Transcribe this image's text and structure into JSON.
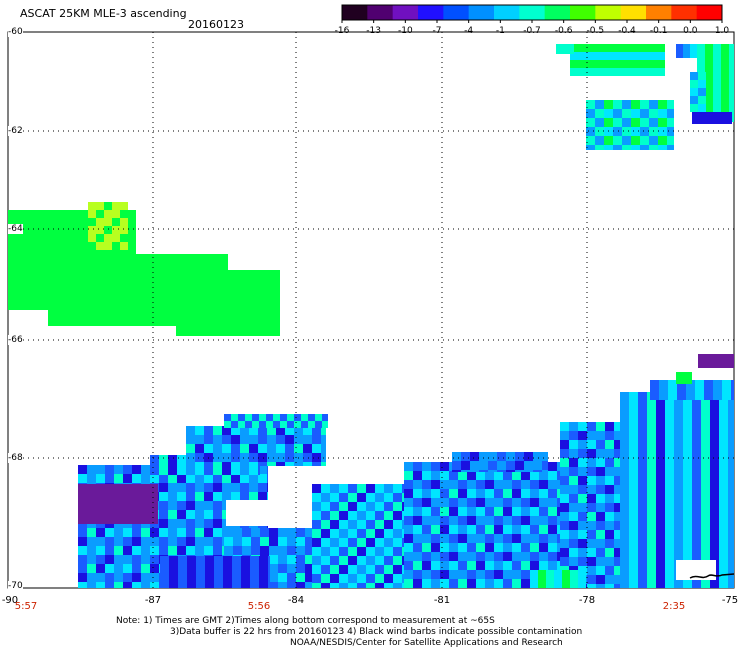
{
  "header": {
    "title": "ASCAT 25KM MLE-3 ascending",
    "date": "20160123"
  },
  "colorbar": {
    "labels": [
      "-16",
      "-13",
      "-10",
      "-7",
      "-4",
      "-1",
      "-0.7",
      "-0.6",
      "-0.5",
      "-0.4",
      "-0.1",
      "0.0",
      "1.0"
    ],
    "colors": [
      "#200020",
      "#500070",
      "#7010c0",
      "#2010ff",
      "#0050ff",
      "#0090ff",
      "#00d0ff",
      "#00ffd0",
      "#00ff60",
      "#40ff00",
      "#c0ff00",
      "#ffe000",
      "#ff8000",
      "#ff3000",
      "#ff0000"
    ]
  },
  "map": {
    "lat_labels": [
      "-60",
      "-62",
      "-64",
      "-66",
      "-68",
      "-70"
    ],
    "lon_labels": [
      "-90",
      "-87",
      "-84",
      "-81",
      "-78",
      "-75"
    ],
    "time_labels": [
      "5:57",
      "5:56",
      "2:35"
    ],
    "palette": {
      "deep_purple": "#6a1a9a",
      "dark_blue": "#1a10e0",
      "blue": "#1a5cff",
      "light_blue": "#0a9cff",
      "cyan": "#00e6ff",
      "aqua": "#00ffcc",
      "green": "#00ff40",
      "yellow_green": "#b8ff20"
    }
  },
  "notes": {
    "line1": "Note: 1) Times are GMT 2)Times along bottom correspond to measurement at ~65S",
    "line2": "3)Data buffer is 22 hrs from 20160123 4) Black wind barbs indicate possible contamination",
    "line3": "NOAA/NESDIS/Center for Satellite Applications and Research"
  }
}
